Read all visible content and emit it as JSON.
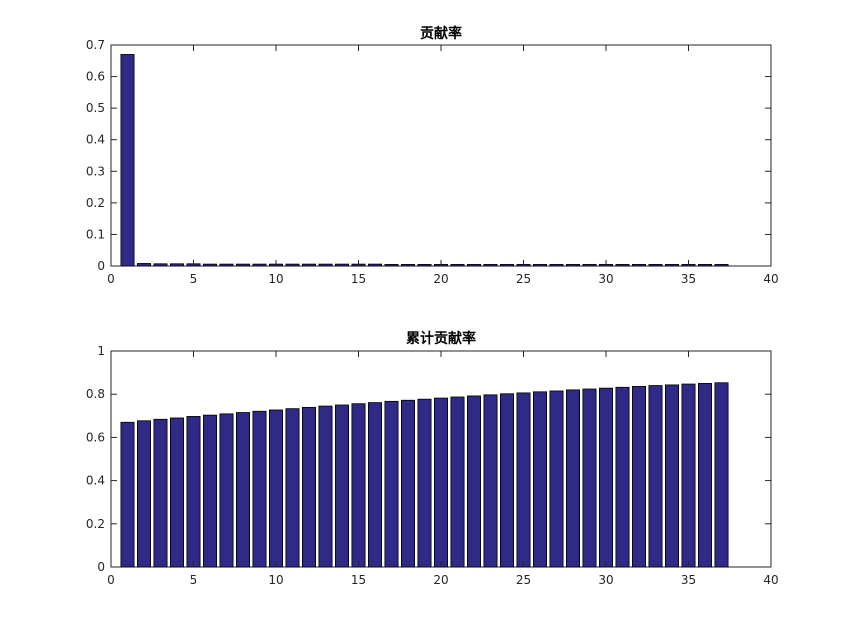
{
  "chart_data": [
    {
      "type": "bar",
      "title": "贡献率",
      "xlabel": "",
      "ylabel": "",
      "xlim": [
        0,
        40
      ],
      "ylim": [
        0,
        0.7
      ],
      "xticks": [
        "0",
        "5",
        "10",
        "15",
        "20",
        "25",
        "30",
        "35",
        "40"
      ],
      "yticks": [
        "0",
        "0.1",
        "0.2",
        "0.3",
        "0.4",
        "0.5",
        "0.6",
        "0.7"
      ],
      "grid": false,
      "bar_color": "#2e2a85",
      "x": [
        1,
        2,
        3,
        4,
        5,
        6,
        7,
        8,
        9,
        10,
        11,
        12,
        13,
        14,
        15,
        16,
        17,
        18,
        19,
        20,
        21,
        22,
        23,
        24,
        25,
        26,
        27,
        28,
        29,
        30,
        31,
        32,
        33,
        34,
        35,
        36,
        37
      ],
      "values": [
        0.67,
        0.008,
        0.007,
        0.007,
        0.007,
        0.006,
        0.006,
        0.006,
        0.006,
        0.006,
        0.006,
        0.006,
        0.006,
        0.006,
        0.006,
        0.006,
        0.005,
        0.005,
        0.005,
        0.005,
        0.005,
        0.005,
        0.005,
        0.005,
        0.005,
        0.005,
        0.005,
        0.005,
        0.005,
        0.005,
        0.005,
        0.005,
        0.005,
        0.005,
        0.005,
        0.005,
        0.005
      ]
    },
    {
      "type": "bar",
      "title": "累计贡献率",
      "xlabel": "",
      "ylabel": "",
      "xlim": [
        0,
        40
      ],
      "ylim": [
        0,
        1
      ],
      "xticks": [
        "0",
        "5",
        "10",
        "15",
        "20",
        "25",
        "30",
        "35",
        "40"
      ],
      "yticks": [
        "0",
        "0.2",
        "0.4",
        "0.6",
        "0.8",
        "1"
      ],
      "grid": false,
      "bar_color": "#2e2a85",
      "x": [
        1,
        2,
        3,
        4,
        5,
        6,
        7,
        8,
        9,
        10,
        11,
        12,
        13,
        14,
        15,
        16,
        17,
        18,
        19,
        20,
        21,
        22,
        23,
        24,
        25,
        26,
        27,
        28,
        29,
        30,
        31,
        32,
        33,
        34,
        35,
        36,
        37
      ],
      "values": [
        0.67,
        0.677,
        0.684,
        0.69,
        0.697,
        0.703,
        0.709,
        0.715,
        0.721,
        0.727,
        0.733,
        0.739,
        0.745,
        0.75,
        0.756,
        0.761,
        0.767,
        0.772,
        0.777,
        0.782,
        0.787,
        0.792,
        0.797,
        0.802,
        0.806,
        0.811,
        0.815,
        0.82,
        0.824,
        0.828,
        0.832,
        0.836,
        0.84,
        0.843,
        0.847,
        0.85,
        0.853
      ]
    }
  ]
}
